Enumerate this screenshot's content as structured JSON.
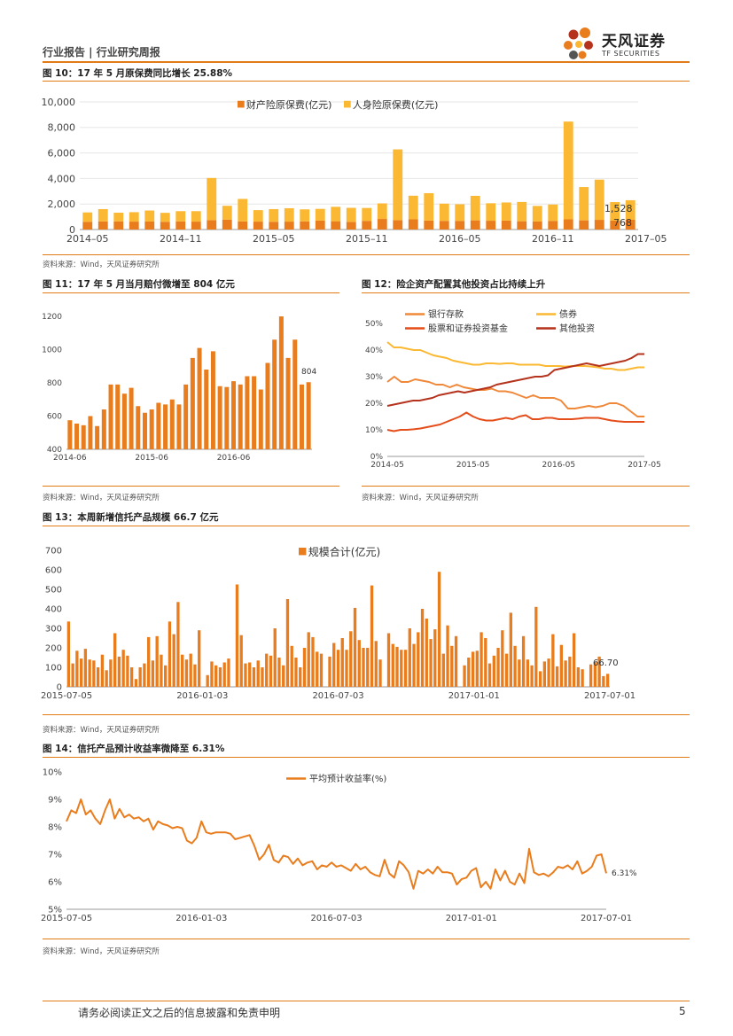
{
  "header": {
    "left": "行业报告 | 行业研究周报",
    "logo_cn": "天风证券",
    "logo_en": "TF SECURITIES"
  },
  "footer": {
    "disclaimer": "请务必阅读正文之后的信息披露和免责申明",
    "page": "5"
  },
  "colors": {
    "orange": "#e97d1e",
    "yellow": "#fbb832",
    "darkred": "#b5321d",
    "accent": "#e07b17"
  },
  "fig10": {
    "caption": "图 10：17 年 5 月原保费同比增长 25.88%",
    "source": "资料来源：Wind，天风证券研究所"
  },
  "fig11": {
    "caption": "图 11：17 年 5 月当月赔付微增至 804 亿元",
    "source": "资料来源：Wind，天风证券研究所"
  },
  "fig12": {
    "caption": "图 12：险企资产配置其他投资占比持续上升",
    "source": "资料来源：Wind，天风证券研究所"
  },
  "fig13": {
    "caption": "图 13：本周新增信托产品规模 66.7 亿元",
    "source": "资料来源：Wind，天风证券研究所"
  },
  "fig14": {
    "caption": "图 14：信托产品预计收益率微降至 6.31%",
    "source": "资料来源：Wind，天风证券研究所"
  },
  "chart_data": [
    {
      "id": "fig10",
      "type": "bar",
      "stacked": true,
      "x_ticks": [
        "2014–05",
        "2014–11",
        "2015–05",
        "2015–11",
        "2016–05",
        "2016–11",
        "2017–05"
      ],
      "y_ticks": [
        "0",
        "2,000",
        "4,000",
        "6,000",
        "8,000",
        "10,000"
      ],
      "ylim": [
        0,
        10000
      ],
      "series": [
        {
          "name": "财产险原保费(亿元)",
          "color": "#e97d1e",
          "values": [
            610,
            640,
            640,
            620,
            630,
            610,
            640,
            620,
            740,
            780,
            640,
            620,
            610,
            620,
            640,
            700,
            650,
            600,
            680,
            830,
            740,
            800,
            700,
            680,
            680,
            720,
            690,
            700,
            650,
            630,
            680,
            800,
            720,
            760,
            700,
            768
          ]
        },
        {
          "name": "人身险原保费(亿元)",
          "color": "#fbb832",
          "values": [
            730,
            960,
            680,
            740,
            860,
            700,
            800,
            820,
            3300,
            1080,
            1760,
            900,
            990,
            1050,
            940,
            920,
            1130,
            1100,
            1010,
            1220,
            5540,
            1850,
            2150,
            1350,
            1300,
            1920,
            1370,
            1420,
            1510,
            1220,
            1280,
            7660,
            2610,
            3150,
            1450,
            1528
          ]
        }
      ],
      "data_labels": [
        "1,528",
        "768"
      ]
    },
    {
      "id": "fig11",
      "type": "bar",
      "x_ticks": [
        "2014-06",
        "2015-06",
        "2016-06"
      ],
      "y_ticks": [
        "400",
        "600",
        "800",
        "1000",
        "1200"
      ],
      "ylim": [
        400,
        1200
      ],
      "series": [
        {
          "name": "",
          "color": "#e97d1e",
          "values": [
            575,
            555,
            545,
            600,
            540,
            640,
            790,
            790,
            735,
            770,
            660,
            620,
            640,
            680,
            670,
            700,
            670,
            790,
            950,
            1010,
            880,
            990,
            780,
            775,
            810,
            790,
            840,
            840,
            760,
            920,
            1060,
            1200,
            950,
            1060,
            790,
            804
          ]
        }
      ],
      "data_labels": [
        "804"
      ]
    },
    {
      "id": "fig12",
      "type": "line",
      "x_ticks": [
        "2014-05",
        "2015-05",
        "2016-05",
        "2017-05"
      ],
      "y_ticks": [
        "0%",
        "10%",
        "20%",
        "30%",
        "40%",
        "50%"
      ],
      "ylim": [
        0,
        50
      ],
      "series": [
        {
          "name": "银行存款",
          "color": "#f0883a",
          "values": [
            28,
            30,
            28,
            28,
            29,
            28.5,
            28,
            27,
            27,
            26,
            27,
            26,
            25.5,
            25,
            25,
            25.5,
            24.5,
            24.5,
            24,
            23,
            22,
            23,
            22,
            22,
            22,
            21,
            18,
            18,
            18.5,
            19,
            18.5,
            19,
            20,
            20,
            19,
            17,
            15,
            15
          ]
        },
        {
          "name": "债券",
          "color": "#fbb832",
          "values": [
            43,
            41,
            41,
            40.5,
            40,
            40,
            39,
            38,
            37.5,
            37,
            36,
            35.5,
            35,
            34.5,
            34.5,
            35,
            35,
            34.8,
            35,
            35,
            34.5,
            34.5,
            34.5,
            34.5,
            34,
            34,
            34,
            33.8,
            34,
            34,
            34,
            33.8,
            33.5,
            33,
            33,
            32.5,
            32.5,
            33,
            33.5,
            33.5
          ]
        },
        {
          "name": "股票和证券投资基金",
          "color": "#e54e1b",
          "values": [
            10,
            9.5,
            10,
            10,
            10.2,
            10.5,
            11,
            11.5,
            12,
            13,
            14,
            15,
            16.5,
            15,
            14,
            13.5,
            13.5,
            14,
            14.5,
            14,
            15,
            15.5,
            14,
            14,
            14.5,
            14.5,
            14,
            14,
            14,
            14.2,
            14.5,
            14.5,
            14.5,
            14,
            13.5,
            13.2,
            13,
            13,
            13,
            13
          ]
        },
        {
          "name": "其他投资",
          "color": "#b5321d",
          "values": [
            19,
            19.5,
            20,
            20.5,
            21,
            21,
            21.5,
            22,
            23,
            23.5,
            24,
            24.5,
            24,
            24.5,
            25,
            25.5,
            26,
            27,
            27.5,
            28,
            28.5,
            29,
            29.5,
            30,
            30,
            30.5,
            32.5,
            33,
            33.5,
            34,
            34.5,
            35,
            34.5,
            34,
            34.5,
            35,
            35.5,
            36,
            37,
            38.5,
            38.5
          ]
        }
      ]
    },
    {
      "id": "fig13",
      "type": "bar",
      "x_ticks": [
        "2015-07-05",
        "2016-01-03",
        "2016-07-03",
        "2017-01-01",
        "2017-07-01"
      ],
      "y_ticks": [
        "0",
        "100",
        "200",
        "300",
        "400",
        "500",
        "600",
        "700"
      ],
      "ylim": [
        0,
        700
      ],
      "series": [
        {
          "name": "规模合计(亿元)",
          "color": "#e97d1e",
          "values": [
            335,
            120,
            185,
            145,
            195,
            140,
            135,
            100,
            165,
            85,
            140,
            275,
            155,
            190,
            160,
            100,
            40,
            100,
            120,
            255,
            135,
            260,
            165,
            110,
            335,
            270,
            435,
            165,
            140,
            170,
            115,
            290,
            0,
            60,
            130,
            110,
            100,
            125,
            145,
            0,
            525,
            265,
            120,
            125,
            100,
            135,
            100,
            170,
            160,
            300,
            150,
            110,
            450,
            210,
            150,
            100,
            200,
            280,
            255,
            180,
            170,
            0,
            155,
            225,
            190,
            250,
            190,
            285,
            405,
            240,
            200,
            200,
            520,
            235,
            140,
            0,
            275,
            220,
            205,
            190,
            190,
            300,
            220,
            280,
            400,
            350,
            245,
            295,
            590,
            170,
            315,
            210,
            260,
            0,
            110,
            150,
            180,
            185,
            280,
            250,
            120,
            160,
            200,
            290,
            170,
            380,
            210,
            140,
            260,
            140,
            110,
            410,
            80,
            130,
            145,
            270,
            105,
            215,
            135,
            155,
            275,
            100,
            90,
            0,
            115,
            125,
            155,
            55,
            66.7
          ]
        }
      ],
      "data_labels": [
        "66.70"
      ]
    },
    {
      "id": "fig14",
      "type": "line",
      "x_ticks": [
        "2015-07-05",
        "2016-01-03",
        "2016-07-03",
        "2017-01-01",
        "2017-07-01"
      ],
      "y_ticks": [
        "5%",
        "6%",
        "7%",
        "8%",
        "9%",
        "10%"
      ],
      "ylim": [
        5,
        10
      ],
      "series": [
        {
          "name": "平均预计收益率(%)",
          "color": "#e97d1e",
          "values": [
            8.2,
            8.6,
            8.5,
            9.0,
            8.45,
            8.6,
            8.3,
            8.1,
            8.6,
            9.0,
            8.3,
            8.65,
            8.35,
            8.45,
            8.3,
            8.35,
            8.2,
            8.3,
            7.9,
            8.2,
            8.1,
            8.05,
            7.95,
            8.0,
            7.95,
            7.5,
            7.4,
            7.6,
            8.2,
            7.8,
            7.75,
            7.8,
            7.8,
            7.8,
            7.75,
            7.55,
            7.6,
            7.65,
            7.7,
            7.3,
            6.8,
            7.0,
            7.35,
            6.8,
            6.7,
            6.95,
            6.9,
            6.65,
            6.85,
            6.6,
            6.7,
            6.75,
            6.45,
            6.6,
            6.55,
            6.7,
            6.55,
            6.6,
            6.5,
            6.4,
            6.65,
            6.45,
            6.55,
            6.35,
            6.25,
            6.2,
            6.8,
            6.3,
            6.15,
            6.75,
            6.6,
            6.35,
            5.75,
            6.4,
            6.3,
            6.45,
            6.3,
            6.55,
            6.35,
            6.35,
            6.3,
            5.9,
            6.1,
            6.15,
            6.4,
            6.5,
            5.8,
            6.0,
            5.75,
            6.45,
            6.05,
            6.4,
            6.0,
            5.9,
            6.3,
            5.95,
            7.2,
            6.35,
            6.25,
            6.3,
            6.2,
            6.35,
            6.55,
            6.5,
            6.6,
            6.45,
            6.75,
            6.3,
            6.4,
            6.55,
            6.95,
            7.0,
            6.31
          ]
        }
      ],
      "data_labels": [
        "6.31%"
      ]
    }
  ]
}
